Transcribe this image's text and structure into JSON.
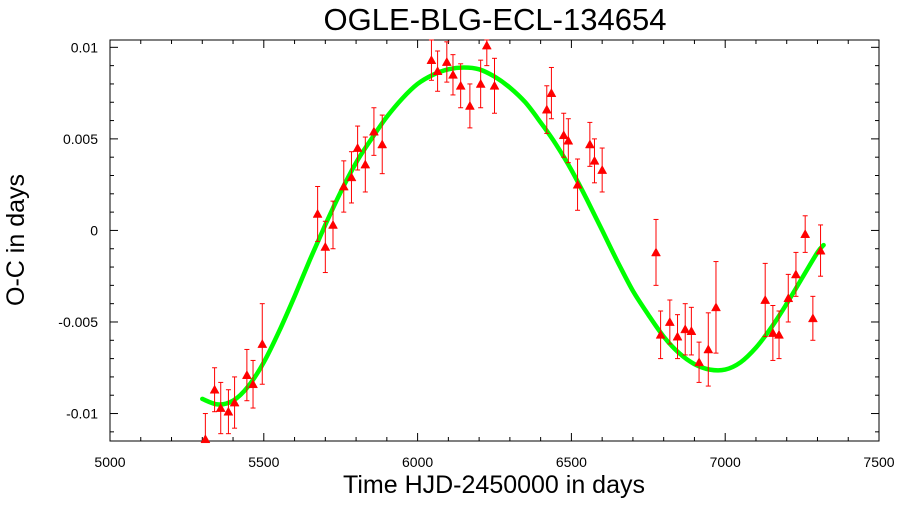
{
  "chart_data": {
    "type": "scatter",
    "title": "OGLE-BLG-ECL-134654",
    "xlabel": "Time HJD-2450000 in days",
    "ylabel": "O-C in days",
    "xlim": [
      5000,
      7500
    ],
    "ylim": [
      -0.0115,
      0.0104
    ],
    "x_ticks": [
      5000,
      5500,
      6000,
      6500,
      7000,
      7500
    ],
    "x_tick_labels": [
      "5000",
      "5500",
      "6000",
      "6500",
      "7000",
      "7500"
    ],
    "y_ticks": [
      -0.01,
      -0.005,
      0,
      0.005,
      0.01
    ],
    "y_tick_labels": [
      "-0.01",
      "-0.005",
      "0",
      "0.005",
      "0.01"
    ],
    "grid": false,
    "legend": "none",
    "colors": {
      "points": "#ff0000",
      "fit": "#00ff00",
      "axes": "#000000"
    },
    "series": [
      {
        "kind": "points-with-errorbars",
        "marker": "triangle",
        "x": [
          5310,
          5340,
          5360,
          5385,
          5405,
          5445,
          5465,
          5495,
          5675,
          5700,
          5725,
          5760,
          5785,
          5805,
          5830,
          5858,
          5885,
          6045,
          6065,
          6095,
          6115,
          6140,
          6170,
          6205,
          6225,
          6250,
          6420,
          6435,
          6475,
          6490,
          6520,
          6560,
          6575,
          6600,
          6775,
          6790,
          6820,
          6845,
          6870,
          6890,
          6915,
          6945,
          6970,
          7130,
          7155,
          7175,
          7205,
          7230,
          7260,
          7285,
          7310
        ],
        "y": [
          -0.0114,
          -0.0087,
          -0.0097,
          -0.0099,
          -0.0094,
          -0.0079,
          -0.0084,
          -0.0062,
          0.0009,
          -0.0009,
          0.0003,
          0.0024,
          0.0029,
          0.0045,
          0.0036,
          0.0054,
          0.0047,
          0.0093,
          0.0087,
          0.0092,
          0.0085,
          0.0079,
          0.0068,
          0.008,
          0.0101,
          0.0079,
          0.0066,
          0.0075,
          0.0052,
          0.0049,
          0.0025,
          0.0047,
          0.0038,
          0.0033,
          -0.0012,
          -0.0057,
          -0.005,
          -0.0058,
          -0.0054,
          -0.0055,
          -0.0072,
          -0.0065,
          -0.0042,
          -0.0038,
          -0.0056,
          -0.0057,
          -0.0037,
          -0.0024,
          -0.0002,
          -0.0048,
          -0.0011
        ],
        "yerr": [
          0.0014,
          0.0012,
          0.0014,
          0.0012,
          0.0014,
          0.0014,
          0.0013,
          0.0022,
          0.0015,
          0.0014,
          0.0013,
          0.0014,
          0.0014,
          0.0012,
          0.0015,
          0.0013,
          0.0016,
          0.0011,
          0.0011,
          0.0011,
          0.0011,
          0.0012,
          0.0012,
          0.0013,
          0.0011,
          0.0015,
          0.0013,
          0.0014,
          0.0012,
          0.0012,
          0.0014,
          0.0012,
          0.0012,
          0.0012,
          0.0018,
          0.0013,
          0.0012,
          0.0012,
          0.0014,
          0.0013,
          0.0011,
          0.002,
          0.0025,
          0.002,
          0.0015,
          0.0013,
          0.0013,
          0.0012,
          0.001,
          0.0012,
          0.0014
        ]
      },
      {
        "kind": "fit-curve",
        "x": [
          5300,
          5350,
          5400,
          5450,
          5500,
          5550,
          5600,
          5650,
          5700,
          5750,
          5800,
          5850,
          5900,
          5950,
          6000,
          6050,
          6100,
          6150,
          6200,
          6250,
          6300,
          6350,
          6400,
          6450,
          6500,
          6550,
          6600,
          6650,
          6700,
          6750,
          6800,
          6850,
          6900,
          6950,
          7000,
          7050,
          7100,
          7150,
          7200,
          7250,
          7300,
          7320
        ],
        "y": [
          -0.0092,
          -0.0095,
          -0.0093,
          -0.0085,
          -0.0072,
          -0.0055,
          -0.0036,
          -0.0016,
          0.0003,
          0.0021,
          0.0037,
          0.005,
          0.0062,
          0.0072,
          0.008,
          0.0085,
          0.0088,
          0.0089,
          0.0088,
          0.0084,
          0.0078,
          0.007,
          0.0059,
          0.0047,
          0.0033,
          0.0017,
          0.0,
          -0.0017,
          -0.0033,
          -0.0046,
          -0.0058,
          -0.0067,
          -0.0073,
          -0.0076,
          -0.0076,
          -0.0072,
          -0.0064,
          -0.0053,
          -0.004,
          -0.0026,
          -0.0012,
          -0.0008
        ]
      }
    ]
  }
}
